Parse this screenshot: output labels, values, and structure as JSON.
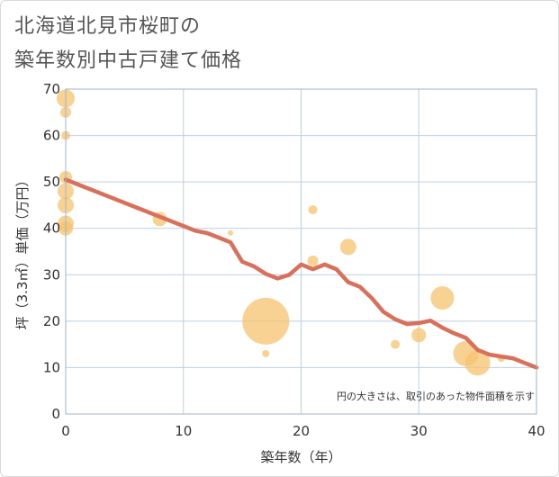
{
  "title_line1": "北海道北見市桜町の",
  "title_line2": "築年数別中古戸建て価格",
  "colors": {
    "bubble": "#f5c36e",
    "line": "#d9705c",
    "grid": "#bcd0e3",
    "frame": "#9fb5c9"
  },
  "chart_data": {
    "type": "scatter",
    "title": "北海道北見市桜町の築年数別中古戸建て価格",
    "xlabel": "築年数（年）",
    "ylabel": "坪（3.3㎡）単価（万円）",
    "xlim": [
      0,
      40
    ],
    "ylim": [
      0,
      70
    ],
    "xticks": [
      0,
      10,
      20,
      30,
      40
    ],
    "yticks": [
      0,
      10,
      20,
      30,
      40,
      50,
      60,
      70
    ],
    "grid": true,
    "note": "円の大きさは、取引のあった物件面積を示す",
    "bubbles": [
      {
        "x": 0,
        "y": 68,
        "size": 10
      },
      {
        "x": 0,
        "y": 65,
        "size": 6
      },
      {
        "x": 0,
        "y": 60,
        "size": 5
      },
      {
        "x": 0,
        "y": 51,
        "size": 7
      },
      {
        "x": 0,
        "y": 48,
        "size": 9
      },
      {
        "x": 0,
        "y": 45,
        "size": 9
      },
      {
        "x": 0,
        "y": 41,
        "size": 9
      },
      {
        "x": 0,
        "y": 40,
        "size": 8
      },
      {
        "x": 8,
        "y": 42,
        "size": 8
      },
      {
        "x": 14,
        "y": 39,
        "size": 3
      },
      {
        "x": 17,
        "y": 20,
        "size": 26
      },
      {
        "x": 17,
        "y": 13,
        "size": 4
      },
      {
        "x": 21,
        "y": 44,
        "size": 5
      },
      {
        "x": 21,
        "y": 33,
        "size": 6
      },
      {
        "x": 24,
        "y": 36,
        "size": 9
      },
      {
        "x": 28,
        "y": 15,
        "size": 5
      },
      {
        "x": 30,
        "y": 17,
        "size": 8
      },
      {
        "x": 32,
        "y": 25,
        "size": 13
      },
      {
        "x": 34,
        "y": 13,
        "size": 14
      },
      {
        "x": 35,
        "y": 11,
        "size": 14
      },
      {
        "x": 37,
        "y": 12,
        "size": 4
      }
    ],
    "trend": {
      "x": [
        0,
        2,
        4,
        6,
        8,
        10,
        11,
        12,
        13,
        14,
        15,
        16,
        17,
        18,
        19,
        20,
        21,
        22,
        23,
        24,
        25,
        26,
        27,
        28,
        29,
        30,
        31,
        32,
        33,
        34,
        35,
        36,
        37,
        38,
        39,
        40
      ],
      "y": [
        50.5,
        48.5,
        46.5,
        44.5,
        42.5,
        40.5,
        39.5,
        39,
        38,
        37,
        32.8,
        31.8,
        30.2,
        29.2,
        30,
        32.2,
        31.2,
        32.2,
        31.2,
        28.4,
        27.4,
        25,
        22,
        20.4,
        19.4,
        19.6,
        20.1,
        18.6,
        17.4,
        16.4,
        13.8,
        12.8,
        12.4,
        12,
        11,
        10
      ]
    }
  }
}
